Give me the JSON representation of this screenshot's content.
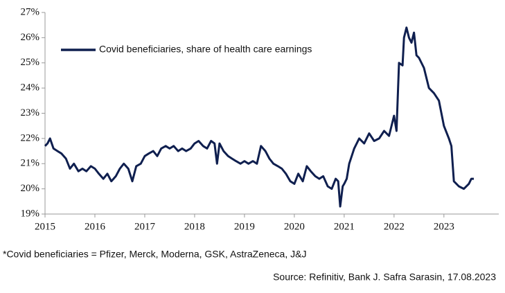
{
  "chart_data": {
    "type": "line",
    "series": [
      {
        "name": "Covid beneficiaries, share of health care earnings",
        "color": "#0f1f4f",
        "x": [
          2015,
          2015.05,
          2015.1,
          2015.17,
          2015.25,
          2015.33,
          2015.42,
          2015.5,
          2015.58,
          2015.67,
          2015.75,
          2015.83,
          2015.92,
          2016,
          2016.08,
          2016.17,
          2016.25,
          2016.33,
          2016.42,
          2016.5,
          2016.58,
          2016.67,
          2016.75,
          2016.83,
          2016.92,
          2017,
          2017.08,
          2017.17,
          2017.25,
          2017.33,
          2017.42,
          2017.5,
          2017.58,
          2017.67,
          2017.75,
          2017.83,
          2017.92,
          2018,
          2018.08,
          2018.17,
          2018.25,
          2018.33,
          2018.4,
          2018.45,
          2018.5,
          2018.58,
          2018.67,
          2018.75,
          2018.83,
          2018.92,
          2019,
          2019.08,
          2019.17,
          2019.25,
          2019.33,
          2019.42,
          2019.5,
          2019.58,
          2019.67,
          2019.75,
          2019.83,
          2019.92,
          2020,
          2020.08,
          2020.17,
          2020.25,
          2020.33,
          2020.42,
          2020.5,
          2020.58,
          2020.67,
          2020.75,
          2020.83,
          2020.88,
          2020.92,
          2020.97,
          2021,
          2021.05,
          2021.1,
          2021.2,
          2021.3,
          2021.4,
          2021.5,
          2021.6,
          2021.7,
          2021.8,
          2021.9,
          2022,
          2022.05,
          2022.1,
          2022.17,
          2022.2,
          2022.25,
          2022.3,
          2022.35,
          2022.4,
          2022.45,
          2022.5,
          2022.6,
          2022.7,
          2022.8,
          2022.9,
          2023,
          2023.1,
          2023.15,
          2023.2,
          2023.3,
          2023.4,
          2023.5,
          2023.55,
          2023.6
        ],
        "values": [
          21.7,
          21.8,
          22.0,
          21.6,
          21.5,
          21.4,
          21.2,
          20.8,
          21.0,
          20.7,
          20.8,
          20.7,
          20.9,
          20.8,
          20.6,
          20.4,
          20.6,
          20.3,
          20.5,
          20.8,
          21.0,
          20.8,
          20.3,
          20.9,
          21.0,
          21.3,
          21.4,
          21.5,
          21.3,
          21.6,
          21.7,
          21.6,
          21.7,
          21.5,
          21.6,
          21.5,
          21.6,
          21.8,
          21.9,
          21.7,
          21.6,
          21.9,
          21.8,
          21.0,
          21.8,
          21.5,
          21.3,
          21.2,
          21.1,
          21.0,
          21.1,
          21.0,
          21.1,
          21.0,
          21.7,
          21.5,
          21.2,
          21.0,
          20.9,
          20.8,
          20.6,
          20.3,
          20.2,
          20.6,
          20.3,
          20.9,
          20.7,
          20.5,
          20.4,
          20.5,
          20.1,
          20.0,
          20.4,
          20.3,
          19.3,
          20.1,
          20.2,
          20.4,
          21.0,
          21.6,
          22.0,
          21.8,
          22.2,
          21.9,
          22.0,
          22.3,
          22.1,
          22.9,
          22.3,
          25.0,
          24.9,
          26.0,
          26.4,
          26.0,
          25.8,
          26.2,
          25.3,
          25.2,
          24.8,
          24.0,
          23.8,
          23.5,
          22.5,
          22.0,
          21.7,
          20.3,
          20.1,
          20.0,
          20.2,
          20.4,
          20.4
        ]
      }
    ],
    "xlim": [
      2015,
      2024.1
    ],
    "xticks": [
      2015,
      2016,
      2017,
      2018,
      2019,
      2020,
      2021,
      2022,
      2023
    ],
    "ylim": [
      19,
      27
    ],
    "yticks": [
      {
        "value": 19,
        "label": "19%"
      },
      {
        "value": 20,
        "label": "20%"
      },
      {
        "value": 21,
        "label": "21%"
      },
      {
        "value": 22,
        "label": "22%"
      },
      {
        "value": 23,
        "label": "23%"
      },
      {
        "value": 24,
        "label": "24%"
      },
      {
        "value": 25,
        "label": "25%"
      },
      {
        "value": 26,
        "label": "26%"
      },
      {
        "value": 27,
        "label": "27%"
      }
    ],
    "footnote": "*Covid beneficiaries = Pfizer, Merck, Moderna, GSK, AstraZeneca, J&J",
    "source": "Source: Refinitiv, Bank J. Safra Sarasin, 17.08.2023"
  }
}
